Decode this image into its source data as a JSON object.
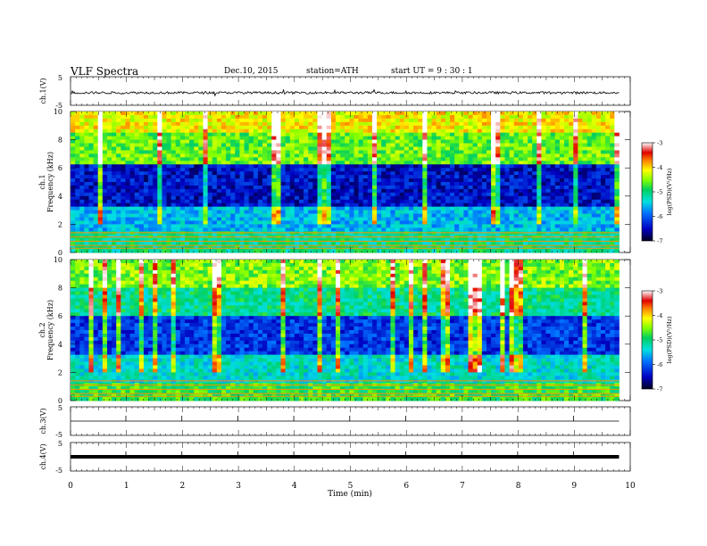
{
  "header": {
    "title": "VLF Spectra",
    "date": "Dec.10, 2015",
    "station": "station=ATH",
    "start": "start  UT =  9 : 30 : 1"
  },
  "chart_data": [
    {
      "type": "line",
      "panel": "ch1-waveform",
      "ylabel": "ch.1(V)",
      "yticks": [
        "5",
        "-5"
      ],
      "ylim": [
        -5,
        5
      ],
      "xlim": [
        0,
        10
      ],
      "description_values": {
        "baseline": -0.6,
        "noise_amplitude": 0.4
      }
    },
    {
      "type": "heatmap",
      "panel": "ch1-spectrogram",
      "ylabel": "ch.1\nFrequency (kHz)",
      "ylabel_line1": "ch.1",
      "ylabel_line2": "Frequency (kHz)",
      "yticks": [
        "0",
        "2",
        "4",
        "6",
        "8",
        "10"
      ],
      "ylim": [
        0,
        10
      ],
      "xlim": [
        0,
        10
      ],
      "colorbar": {
        "label": "log(PSD)(V²/Hz)",
        "ticks": [
          "-3",
          "-4",
          "-5",
          "-6",
          "-7"
        ],
        "range": [
          -7,
          -3
        ]
      }
    },
    {
      "type": "heatmap",
      "panel": "ch2-spectrogram",
      "ylabel_line1": "ch.2",
      "ylabel_line2": "Frequency (kHz)",
      "yticks": [
        "0",
        "2",
        "4",
        "6",
        "8",
        "10"
      ],
      "ylim": [
        0,
        10
      ],
      "xlim": [
        0,
        10
      ],
      "colorbar": {
        "label": "log(PSD)(V²/Hz)",
        "ticks": [
          "-3",
          "-4",
          "-5",
          "-6",
          "-7"
        ],
        "range": [
          -7,
          -3
        ]
      }
    },
    {
      "type": "line",
      "panel": "ch3-waveform",
      "ylabel": "ch.3(V)",
      "yticks": [
        "5",
        "-5"
      ],
      "ylim": [
        -5,
        5
      ],
      "xlim": [
        0,
        10
      ]
    },
    {
      "type": "line",
      "panel": "ch4-waveform",
      "ylabel": "ch.4(V)",
      "yticks": [
        "5",
        "-5"
      ],
      "ylim": [
        -5,
        5
      ],
      "xlim": [
        0,
        10
      ]
    }
  ],
  "xaxis": {
    "label": "Time  (min)",
    "ticks": [
      "0",
      "1",
      "2",
      "3",
      "4",
      "5",
      "6",
      "7",
      "8",
      "9",
      "10"
    ],
    "range": [
      0,
      10
    ],
    "data_end": 9.8
  },
  "colors": {
    "background": "#ffffff",
    "axis": "#000000",
    "palette_low": "#000030",
    "palette_high": "#ffffff"
  }
}
